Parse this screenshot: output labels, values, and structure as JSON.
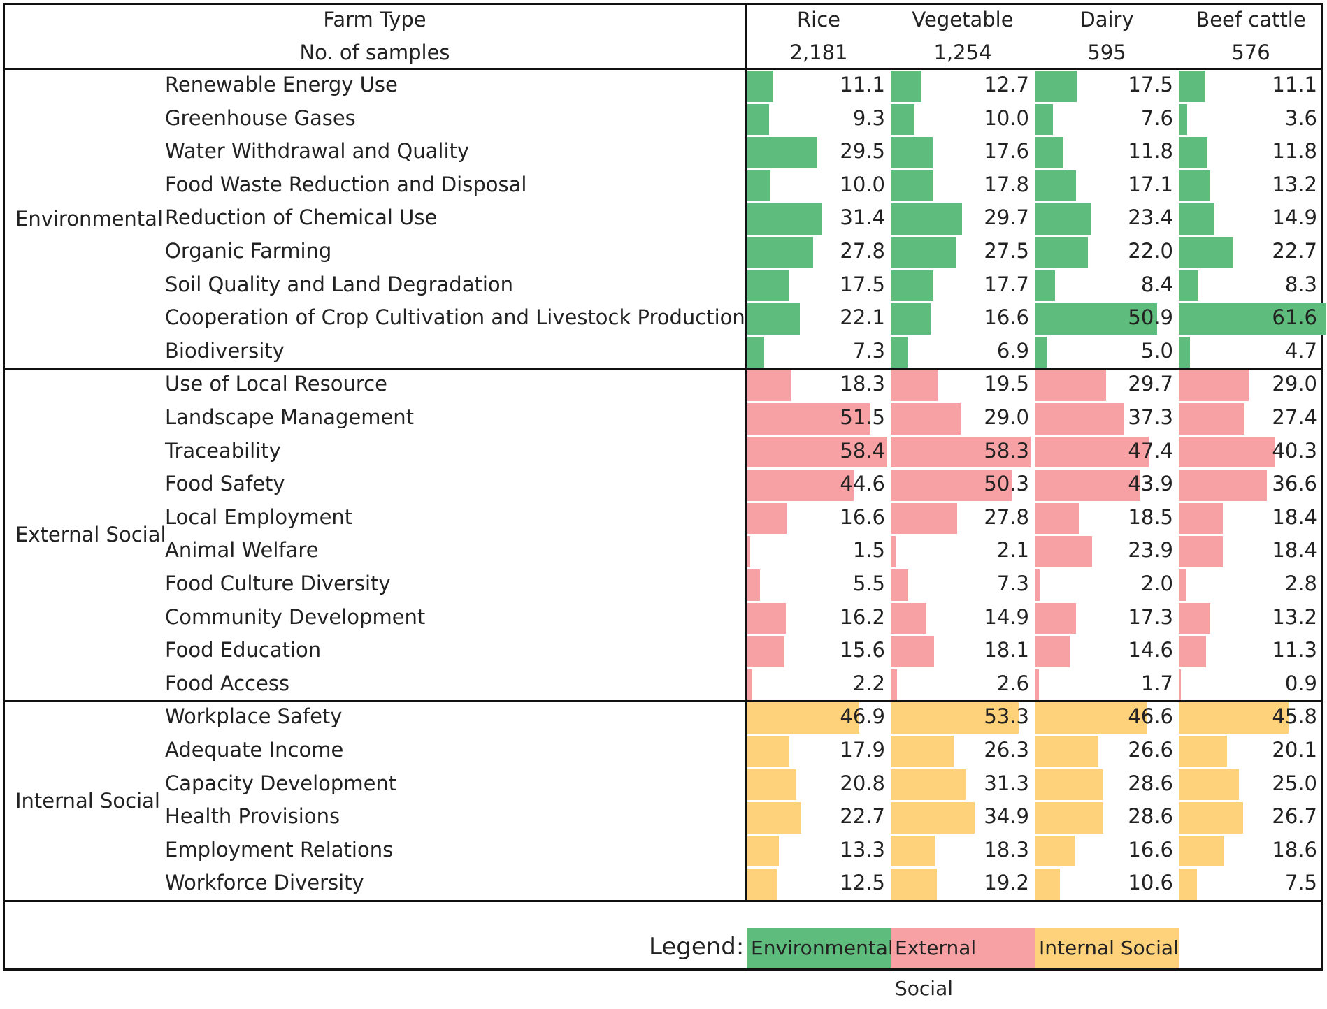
{
  "chart_data": {
    "type": "table",
    "header_row1_label": "Farm Type",
    "header_row2_label": "No. of samples",
    "columns": [
      {
        "name": "Rice",
        "samples": "2,181"
      },
      {
        "name": "Vegetable",
        "samples": "1,254"
      },
      {
        "name": "Dairy",
        "samples": "595"
      },
      {
        "name": "Beef cattle",
        "samples": "576"
      }
    ],
    "groups": [
      {
        "name": "Environmental",
        "color": "#5ebd7c",
        "rows": [
          {
            "label": "Renewable Energy Use",
            "values": [
              11.1,
              12.7,
              17.5,
              11.1
            ]
          },
          {
            "label": "Greenhouse Gases",
            "values": [
              9.3,
              10.0,
              7.6,
              3.6
            ]
          },
          {
            "label": "Water Withdrawal and Quality",
            "values": [
              29.5,
              17.6,
              11.8,
              11.8
            ]
          },
          {
            "label": "Food Waste Reduction and Disposal",
            "values": [
              10.0,
              17.8,
              17.1,
              13.2
            ]
          },
          {
            "label": "Reduction of Chemical Use",
            "values": [
              31.4,
              29.7,
              23.4,
              14.9
            ]
          },
          {
            "label": "Organic Farming",
            "values": [
              27.8,
              27.5,
              22.0,
              22.7
            ]
          },
          {
            "label": "Soil Quality and Land Degradation",
            "values": [
              17.5,
              17.7,
              8.4,
              8.3
            ]
          },
          {
            "label": "Cooperation of Crop Cultivation and Livestock Production",
            "values": [
              22.1,
              16.6,
              50.9,
              61.6
            ]
          },
          {
            "label": "Biodiversity",
            "values": [
              7.3,
              6.9,
              5.0,
              4.7
            ]
          }
        ]
      },
      {
        "name": "External Social",
        "color": "#f7a1a4",
        "rows": [
          {
            "label": "Use of Local Resource",
            "values": [
              18.3,
              19.5,
              29.7,
              29.0
            ]
          },
          {
            "label": "Landscape Management",
            "values": [
              51.5,
              29.0,
              37.3,
              27.4
            ]
          },
          {
            "label": "Traceability",
            "values": [
              58.4,
              58.3,
              47.4,
              40.3
            ]
          },
          {
            "label": "Food Safety",
            "values": [
              44.6,
              50.3,
              43.9,
              36.6
            ]
          },
          {
            "label": "Local Employment",
            "values": [
              16.6,
              27.8,
              18.5,
              18.4
            ]
          },
          {
            "label": "Animal Welfare",
            "values": [
              1.5,
              2.1,
              23.9,
              18.4
            ]
          },
          {
            "label": "Food Culture Diversity",
            "values": [
              5.5,
              7.3,
              2.0,
              2.8
            ]
          },
          {
            "label": "Community Development",
            "values": [
              16.2,
              14.9,
              17.3,
              13.2
            ]
          },
          {
            "label": "Food Education",
            "values": [
              15.6,
              18.1,
              14.6,
              11.3
            ]
          },
          {
            "label": "Food Access",
            "values": [
              2.2,
              2.6,
              1.7,
              0.9
            ]
          }
        ]
      },
      {
        "name": "Internal Social",
        "color": "#fdd27a",
        "rows": [
          {
            "label": "Workplace Safety",
            "values": [
              46.9,
              53.3,
              46.6,
              45.8
            ]
          },
          {
            "label": "Adequate Income",
            "values": [
              17.9,
              26.3,
              26.6,
              20.1
            ]
          },
          {
            "label": "Capacity Development",
            "values": [
              20.8,
              31.3,
              28.6,
              25.0
            ]
          },
          {
            "label": "Health Provisions",
            "values": [
              22.7,
              34.9,
              28.6,
              26.7
            ]
          },
          {
            "label": "Employment Relations",
            "values": [
              13.3,
              18.3,
              16.6,
              18.6
            ]
          },
          {
            "label": "Workforce Diversity",
            "values": [
              12.5,
              19.2,
              10.6,
              7.5
            ]
          }
        ]
      }
    ],
    "legend_title": "Legend:",
    "legend": [
      "Environmental",
      "External Social",
      "Internal Social"
    ],
    "value_axis_max": 60
  }
}
